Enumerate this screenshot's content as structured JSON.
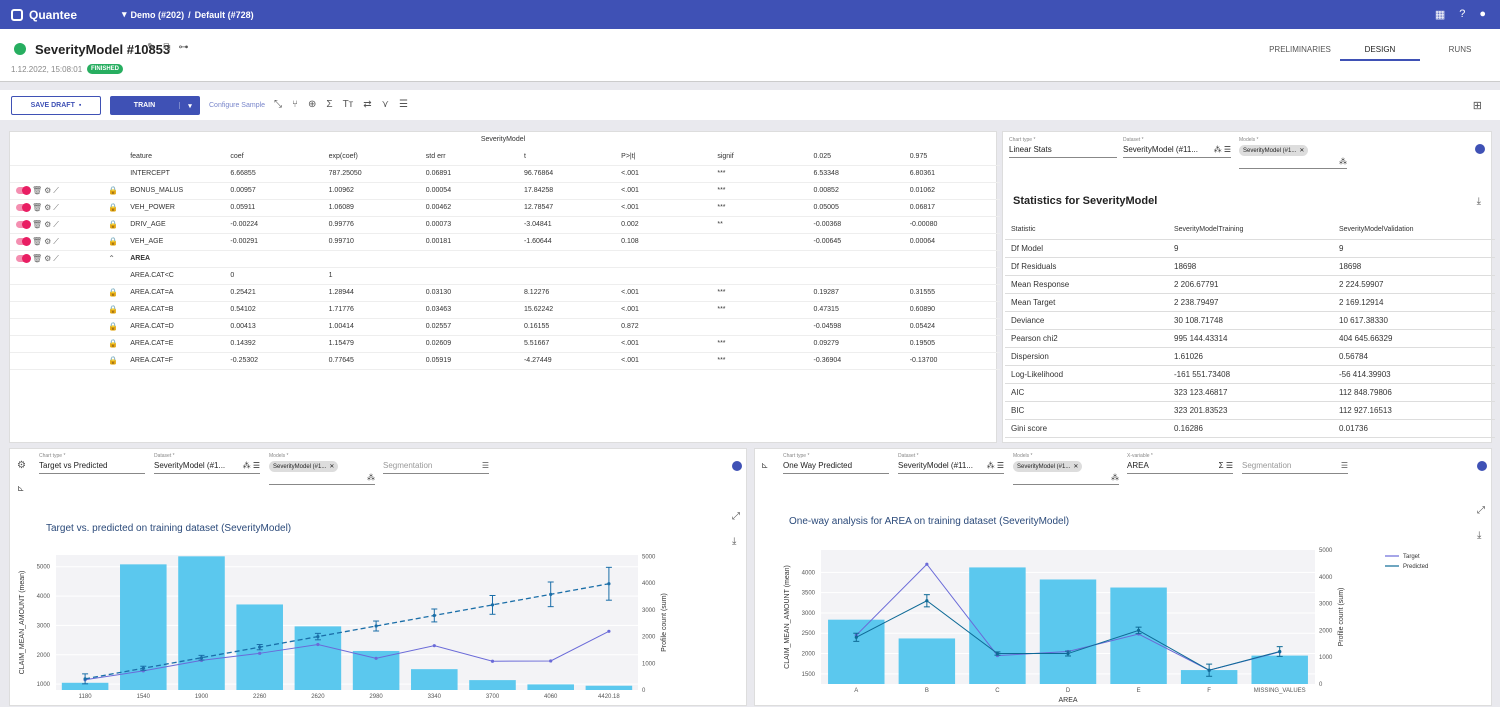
{
  "app": {
    "name": "Quantee",
    "project": "Demo (#202)",
    "separator": "/",
    "workspace": "Default (#728)"
  },
  "model": {
    "name": "SeverityModel #10853",
    "date": "1.12.2022, 15:08:01",
    "status": "FINISHED"
  },
  "tabs": [
    "PRELIMINARIES",
    "DESIGN",
    "RUNS"
  ],
  "toolbar": {
    "save_draft": "SAVE DRAFT",
    "train": "TRAIN",
    "configure": "Configure Sample"
  },
  "coef_table": {
    "title": "SeverityModel",
    "headers": [
      "feature",
      "coef",
      "exp(coef)",
      "std err",
      "t",
      "P>|t|",
      "signif",
      "0.025",
      "0.975"
    ],
    "rows": [
      {
        "kind": "plain",
        "cells": [
          "INTERCEPT",
          "6.66855",
          "787.25050",
          "0.06891",
          "96.76864",
          "<.001",
          "***",
          "6.53348",
          "6.80361"
        ]
      },
      {
        "kind": "ctrl",
        "cells": [
          "BONUS_MALUS",
          "0.00957",
          "1.00962",
          "0.00054",
          "17.84258",
          "<.001",
          "***",
          "0.00852",
          "0.01062"
        ]
      },
      {
        "kind": "ctrl",
        "cells": [
          "VEH_POWER",
          "0.05911",
          "1.06089",
          "0.00462",
          "12.78547",
          "<.001",
          "***",
          "0.05005",
          "0.06817"
        ]
      },
      {
        "kind": "ctrl",
        "cells": [
          "DRIV_AGE",
          "-0.00224",
          "0.99776",
          "0.00073",
          "-3.04841",
          "0.002",
          "**",
          "-0.00368",
          "-0.00080"
        ]
      },
      {
        "kind": "ctrl",
        "cells": [
          "VEH_AGE",
          "-0.00291",
          "0.99710",
          "0.00181",
          "-1.60644",
          "0.108",
          "",
          "-0.00645",
          "0.00064"
        ]
      },
      {
        "kind": "group",
        "cells": [
          "AREA",
          "",
          "",
          "",
          "",
          "",
          "",
          "",
          ""
        ]
      },
      {
        "kind": "sub",
        "cells": [
          "AREA.CAT<C",
          "0",
          "1",
          "",
          "",
          "",
          "",
          "",
          ""
        ]
      },
      {
        "kind": "lock",
        "cells": [
          "AREA.CAT=A",
          "0.25421",
          "1.28944",
          "0.03130",
          "8.12276",
          "<.001",
          "***",
          "0.19287",
          "0.31555"
        ]
      },
      {
        "kind": "lock",
        "cells": [
          "AREA.CAT=B",
          "0.54102",
          "1.71776",
          "0.03463",
          "15.62242",
          "<.001",
          "***",
          "0.47315",
          "0.60890"
        ]
      },
      {
        "kind": "lock",
        "cells": [
          "AREA.CAT=D",
          "0.00413",
          "1.00414",
          "0.02557",
          "0.16155",
          "0.872",
          "",
          "-0.04598",
          "0.05424"
        ]
      },
      {
        "kind": "lock",
        "cells": [
          "AREA.CAT=E",
          "0.14392",
          "1.15479",
          "0.02609",
          "5.51667",
          "<.001",
          "***",
          "0.09279",
          "0.19505"
        ]
      },
      {
        "kind": "lock",
        "cells": [
          "AREA.CAT=F",
          "-0.25302",
          "0.77645",
          "0.05919",
          "-4.27449",
          "<.001",
          "***",
          "-0.36904",
          "-0.13700"
        ]
      }
    ]
  },
  "stats_panel": {
    "chart_type_label": "Chart type *",
    "chart_type": "Linear Stats",
    "dataset_label": "Dataset *",
    "dataset": "SeverityModel (#11...",
    "models_label": "Models *",
    "model_chip": "SeverityModel (#1...",
    "title": "Statistics for SeverityModel",
    "headers": [
      "Statistic",
      "SeverityModelTraining",
      "SeverityModelValidation"
    ],
    "rows": [
      [
        "Df Model",
        "9",
        "9"
      ],
      [
        "Df Residuals",
        "18698",
        "18698"
      ],
      [
        "Mean Response",
        "2 206.67791",
        "2 224.59907"
      ],
      [
        "Mean Target",
        "2 238.79497",
        "2 169.12914"
      ],
      [
        "Deviance",
        "30 108.71748",
        "10 617.38330"
      ],
      [
        "Pearson chi2",
        "995 144.43314",
        "404 645.66329"
      ],
      [
        "Dispersion",
        "1.61026",
        "0.56784"
      ],
      [
        "Log-Likelihood",
        "-161 551.73408",
        "-56 414.39903"
      ],
      [
        "AIC",
        "323 123.46817",
        "112 848.79806"
      ],
      [
        "BIC",
        "323 201.83523",
        "112 927.16513"
      ],
      [
        "Gini score",
        "0.16286",
        "0.01736"
      ]
    ]
  },
  "left_chart_panel": {
    "chart_type_label": "Chart type *",
    "chart_type": "Target vs Predicted",
    "dataset_label": "Dataset *",
    "dataset": "SeverityModel (#1...",
    "models_label": "Models *",
    "model_chip": "SeverityModel (#1...",
    "segmentation": "Segmentation"
  },
  "right_chart_panel": {
    "chart_type_label": "Chart type *",
    "chart_type": "One Way Predicted",
    "dataset_label": "Dataset *",
    "dataset": "SeverityModel (#11...",
    "models_label": "Models *",
    "model_chip": "SeverityModel (#1...",
    "xvar_label": "X-variable *",
    "xvar": "AREA",
    "segmentation": "Segmentation"
  },
  "chart_data": [
    {
      "type": "bar",
      "title": "Target vs. predicted on training dataset (SeverityModel)",
      "ylabel": "CLAIM_MEAN_AMOUNT (mean)",
      "y2label": "Profile count (sum)",
      "categories": [
        "1180",
        "1540",
        "1900",
        "2260",
        "2620",
        "2980",
        "3340",
        "3700",
        "4060",
        "4420.18"
      ],
      "ylim": [
        800,
        5400
      ],
      "yticks": [
        1000,
        2000,
        3000,
        4000,
        5000
      ],
      "y2lim": [
        0,
        5050
      ],
      "y2ticks": [
        0,
        1000,
        2000,
        3000,
        4000,
        5000
      ],
      "series": [
        {
          "kind": "bar",
          "axis": "y2",
          "color": "#5bc8ee",
          "values": [
            270,
            4700,
            5000,
            3200,
            2380,
            1460,
            780,
            370,
            210,
            160
          ]
        },
        {
          "kind": "line",
          "axis": "y",
          "color": "#6a6ad8",
          "values": [
            1150,
            1450,
            1810,
            2050,
            2350,
            1880,
            2310,
            1780,
            1790,
            2800
          ]
        },
        {
          "kind": "dashed",
          "axis": "y",
          "color": "#1a6ea8",
          "values": [
            1180,
            1540,
            1900,
            2260,
            2620,
            2980,
            3340,
            3700,
            4060,
            4420
          ],
          "err": [
            170,
            70,
            80,
            90,
            110,
            170,
            220,
            320,
            420,
            560
          ]
        }
      ]
    },
    {
      "type": "bar",
      "title": "One-way analysis for AREA on training dataset (SeverityModel)",
      "ylabel": "CLAIM_MEAN_AMOUNT (mean)",
      "y2label": "Profile count (sum)",
      "xlabel": "AREA",
      "categories": [
        "A",
        "B",
        "C",
        "D",
        "E",
        "F",
        "MISSING_VALUES"
      ],
      "ylim": [
        1250,
        4550
      ],
      "yticks": [
        1500,
        2000,
        2500,
        3000,
        3500,
        4000
      ],
      "y2lim": [
        0,
        5000
      ],
      "y2ticks": [
        0,
        1000,
        2000,
        3000,
        4000,
        5000
      ],
      "legend": [
        "Target",
        "Predicted"
      ],
      "series": [
        {
          "kind": "bar",
          "axis": "y2",
          "color": "#5bc8ee",
          "values": [
            2400,
            1700,
            4350,
            3900,
            3600,
            520,
            1060
          ]
        },
        {
          "kind": "line",
          "name": "Target",
          "axis": "y",
          "color": "#6a6ad8",
          "values": [
            2450,
            4200,
            1950,
            2050,
            2480,
            1590,
            2040
          ]
        },
        {
          "kind": "line",
          "name": "Predicted",
          "axis": "y",
          "color": "#0e6a96",
          "values": [
            2400,
            3300,
            2000,
            2000,
            2570,
            1590,
            2050
          ],
          "err": [
            100,
            150,
            40,
            60,
            80,
            150,
            120
          ]
        }
      ]
    }
  ]
}
